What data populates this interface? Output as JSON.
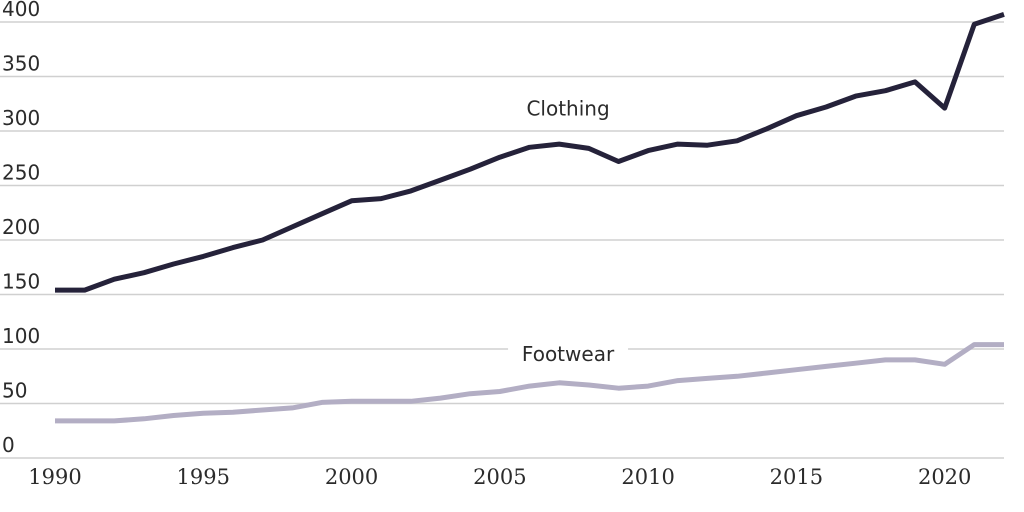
{
  "chart_data": {
    "type": "line",
    "title": "",
    "xlabel": "",
    "ylabel": "",
    "xlim": [
      1990,
      2022
    ],
    "ylim": [
      0,
      400
    ],
    "grid": "horizontal",
    "legend": "none",
    "y_ticks": [
      {
        "value": 400,
        "label": "400"
      },
      {
        "value": 350,
        "label": "350"
      },
      {
        "value": 300,
        "label": "300"
      },
      {
        "value": 250,
        "label": "250"
      },
      {
        "value": 200,
        "label": "200"
      },
      {
        "value": 150,
        "label": "150"
      },
      {
        "value": 100,
        "label": "100"
      },
      {
        "value": 50,
        "label": "50"
      },
      {
        "value": 0,
        "label": "0"
      }
    ],
    "x_ticks": [
      {
        "value": 1990,
        "label": "1990"
      },
      {
        "value": 1995,
        "label": "1995"
      },
      {
        "value": 2000,
        "label": "2000"
      },
      {
        "value": 2005,
        "label": "2005"
      },
      {
        "value": 2010,
        "label": "2010"
      },
      {
        "value": 2015,
        "label": "2015"
      },
      {
        "value": 2020,
        "label": "2020"
      }
    ],
    "x": [
      1990,
      1991,
      1992,
      1993,
      1994,
      1995,
      1996,
      1997,
      1998,
      1999,
      2000,
      2001,
      2002,
      2003,
      2004,
      2005,
      2006,
      2007,
      2008,
      2009,
      2010,
      2011,
      2012,
      2013,
      2014,
      2015,
      2016,
      2017,
      2018,
      2019,
      2020,
      2021,
      2022
    ],
    "series": [
      {
        "name": "Clothing",
        "color": "#25223a",
        "label_at": {
          "x": 2007.3,
          "y": 314
        },
        "values": [
          154,
          154,
          164,
          170,
          178,
          185,
          193,
          200,
          212,
          224,
          236,
          238,
          245,
          255,
          265,
          276,
          285,
          288,
          284,
          272,
          282,
          288,
          287,
          291,
          302,
          314,
          322,
          332,
          337,
          345,
          321,
          398,
          407
        ]
      },
      {
        "name": "Footwear",
        "color": "#b3aec4",
        "label_at": {
          "x": 2007.3,
          "y": 89
        },
        "values": [
          34,
          34,
          34,
          36,
          39,
          41,
          42,
          44,
          46,
          51,
          52,
          52,
          52,
          55,
          59,
          61,
          66,
          69,
          67,
          64,
          66,
          71,
          73,
          75,
          78,
          81,
          84,
          87,
          90,
          90,
          86,
          104,
          104
        ]
      }
    ]
  }
}
